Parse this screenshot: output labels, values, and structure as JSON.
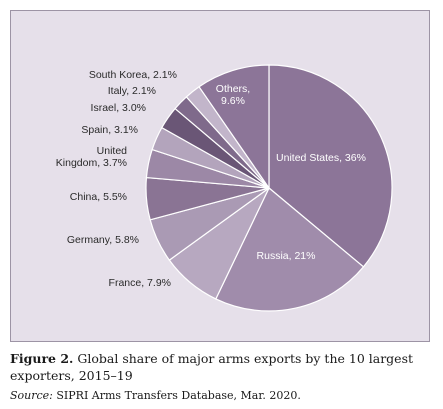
{
  "chart_data": {
    "type": "pie",
    "slices": [
      {
        "label": "United States, 36%",
        "value": 36,
        "color": "#8c7598"
      },
      {
        "label": "Russia, 21%",
        "value": 21,
        "color": "#a08cab"
      },
      {
        "label": "France, 7.9%",
        "value": 7.9,
        "color": "#b7a8c0"
      },
      {
        "label": "Germany, 5.8%",
        "value": 5.8,
        "color": "#aa9ab4"
      },
      {
        "label": "China, 5.5%",
        "value": 5.5,
        "color": "#8a7494"
      },
      {
        "label": "United\nKingdom, 3.7%",
        "value": 3.7,
        "color": "#9c88a6"
      },
      {
        "label": "Spain, 3.1%",
        "value": 3.1,
        "color": "#b3a4bc"
      },
      {
        "label": "Israel, 3.0%",
        "value": 3.0,
        "color": "#6a5676"
      },
      {
        "label": "Italy, 2.1%",
        "value": 2.1,
        "color": "#7f6a8b"
      },
      {
        "label": "South Korea, 2.1%",
        "value": 2.1,
        "color": "#c2b5ca"
      },
      {
        "label": "Others,\n9.6%",
        "value": 9.6,
        "color": "#8c7598"
      }
    ]
  },
  "caption": {
    "label": "Figure 2.",
    "text": " Global share of major arms exports by the 10 largest exporters, 2015–19"
  },
  "source": {
    "label": "Source:",
    "text": " SIPRI Arms Transfers Database, Mar. 2020."
  }
}
